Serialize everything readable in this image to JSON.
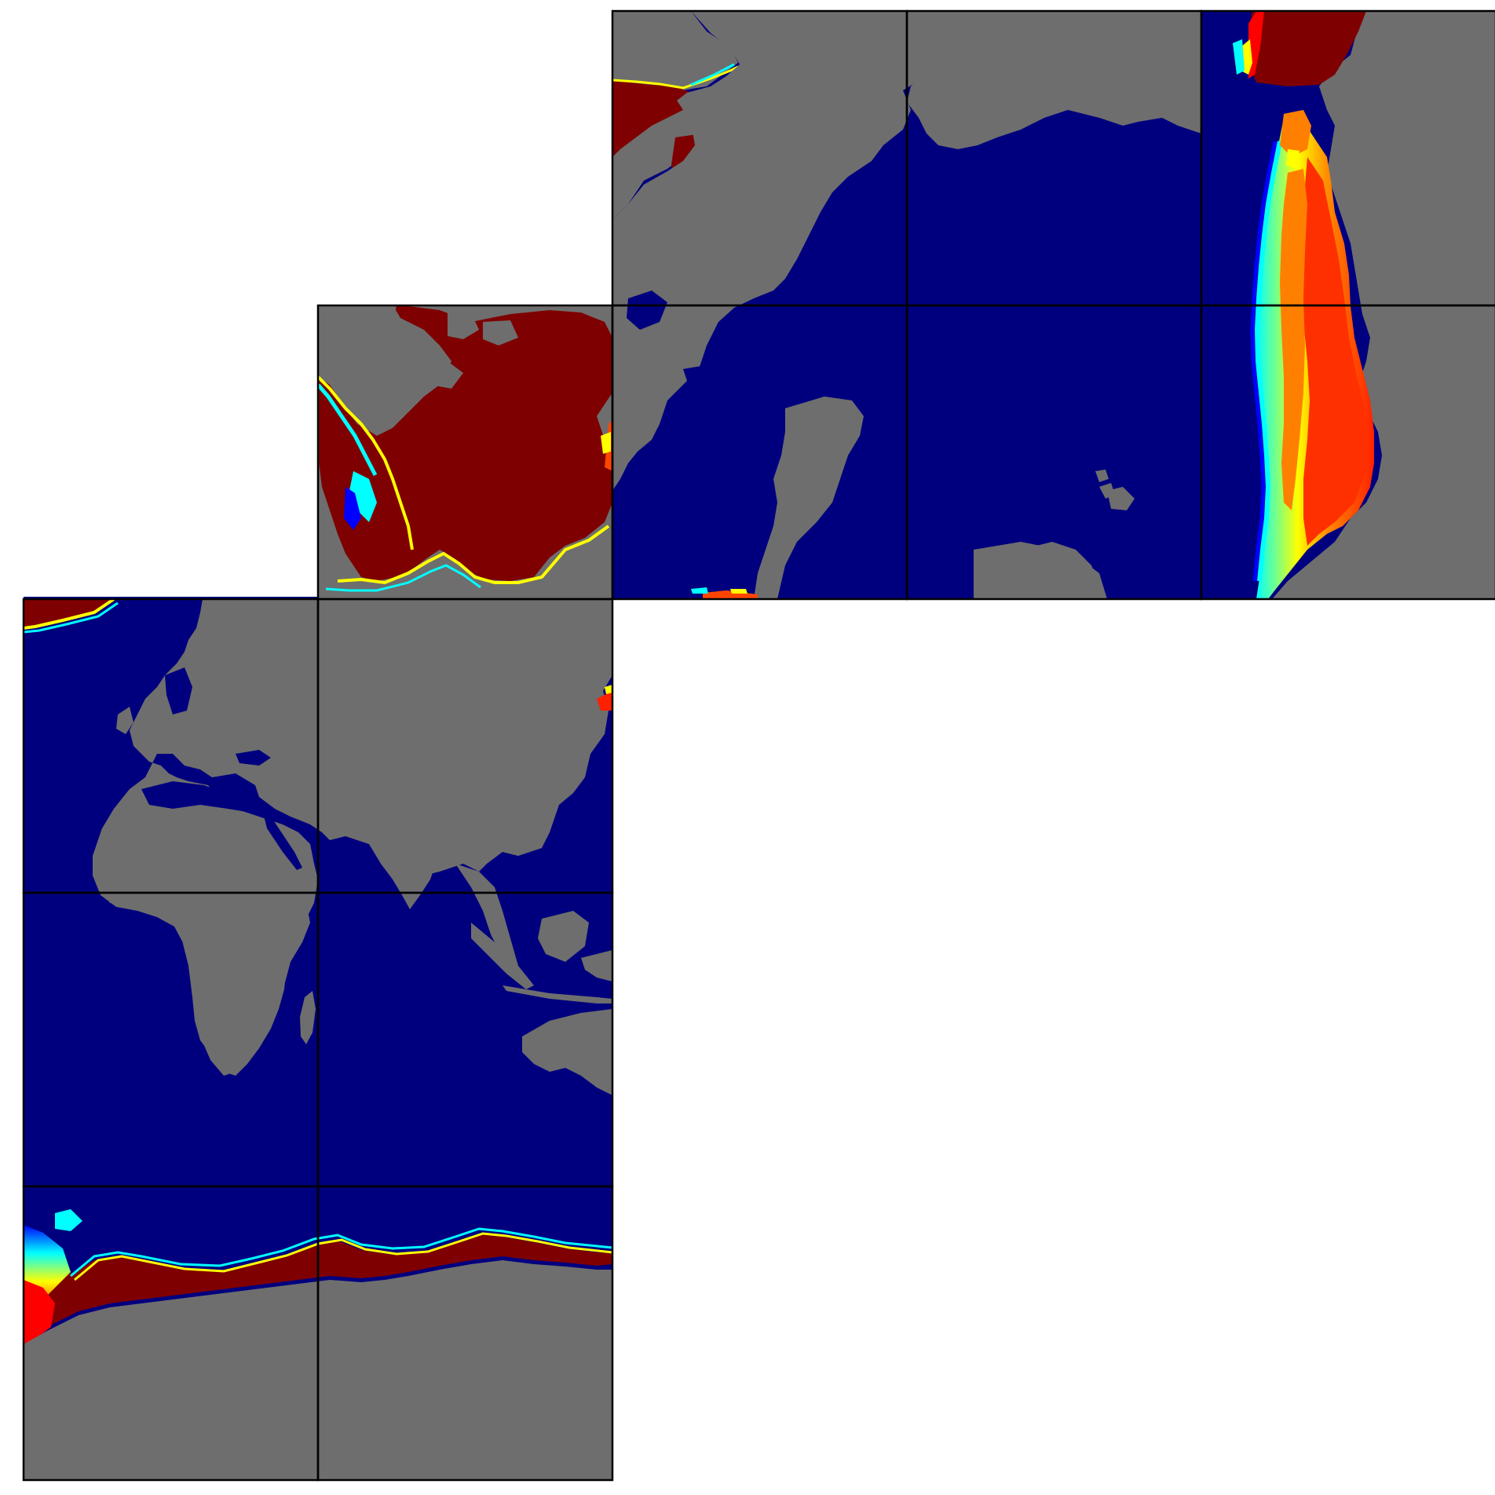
{
  "figure": {
    "description_type": "cubed-sphere-sea-ice-concentration-map",
    "colormap": [
      "#00007f",
      "#0000ff",
      "#00ffff",
      "#ffff00",
      "#ff0000",
      "#7f0000"
    ],
    "colors": {
      "background": "#ffffff",
      "land": "#6e6e6e",
      "ocean": "#00007f",
      "ice_high": "#7f0000",
      "ice_mid": "#ff4500",
      "ice_edge_yellow": "#ffff00",
      "ice_edge_cyan": "#00ffff",
      "ice_edge_blue": "#0000ff",
      "grid_line": "#000000"
    },
    "faces": [
      {
        "id": "face-1",
        "region": "africa-indian-ocean"
      },
      {
        "id": "face-2",
        "region": "asia-pacific"
      },
      {
        "id": "face-3",
        "region": "arctic"
      },
      {
        "id": "face-4",
        "region": "pacific-americas"
      },
      {
        "id": "face-5",
        "region": "atlantic-pacific-east"
      },
      {
        "id": "face-6",
        "region": "antarctic"
      }
    ]
  }
}
